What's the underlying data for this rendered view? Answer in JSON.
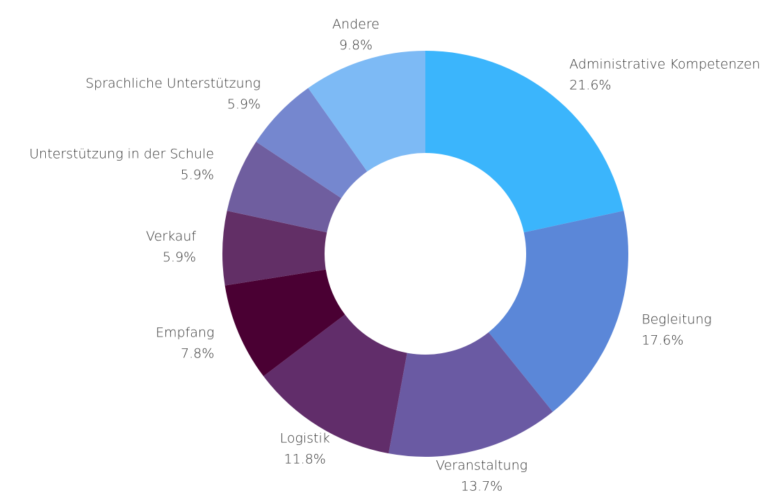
{
  "chart_data": {
    "type": "donut",
    "categories": [
      "Administrative Kompetenzen",
      "Begleitung",
      "Veranstaltung",
      "Logistik",
      "Empfang",
      "Verkauf",
      "Unterstützung in der Schule",
      "Sprachliche Unterstützung",
      "Andere"
    ],
    "values": [
      21.6,
      17.6,
      13.7,
      11.8,
      7.8,
      5.9,
      5.9,
      5.9,
      9.8
    ],
    "value_labels": [
      "21.6%",
      "17.6%",
      "13.7%",
      "11.8%",
      "7.8%",
      "5.9%",
      "5.9%",
      "5.9%",
      "9.8%"
    ],
    "colors": [
      "#3bb5fc",
      "#5b87d8",
      "#6a5aa3",
      "#612d6a",
      "#4a0033",
      "#622f66",
      "#6f5e9f",
      "#7587cf",
      "#7dbaf5"
    ]
  }
}
